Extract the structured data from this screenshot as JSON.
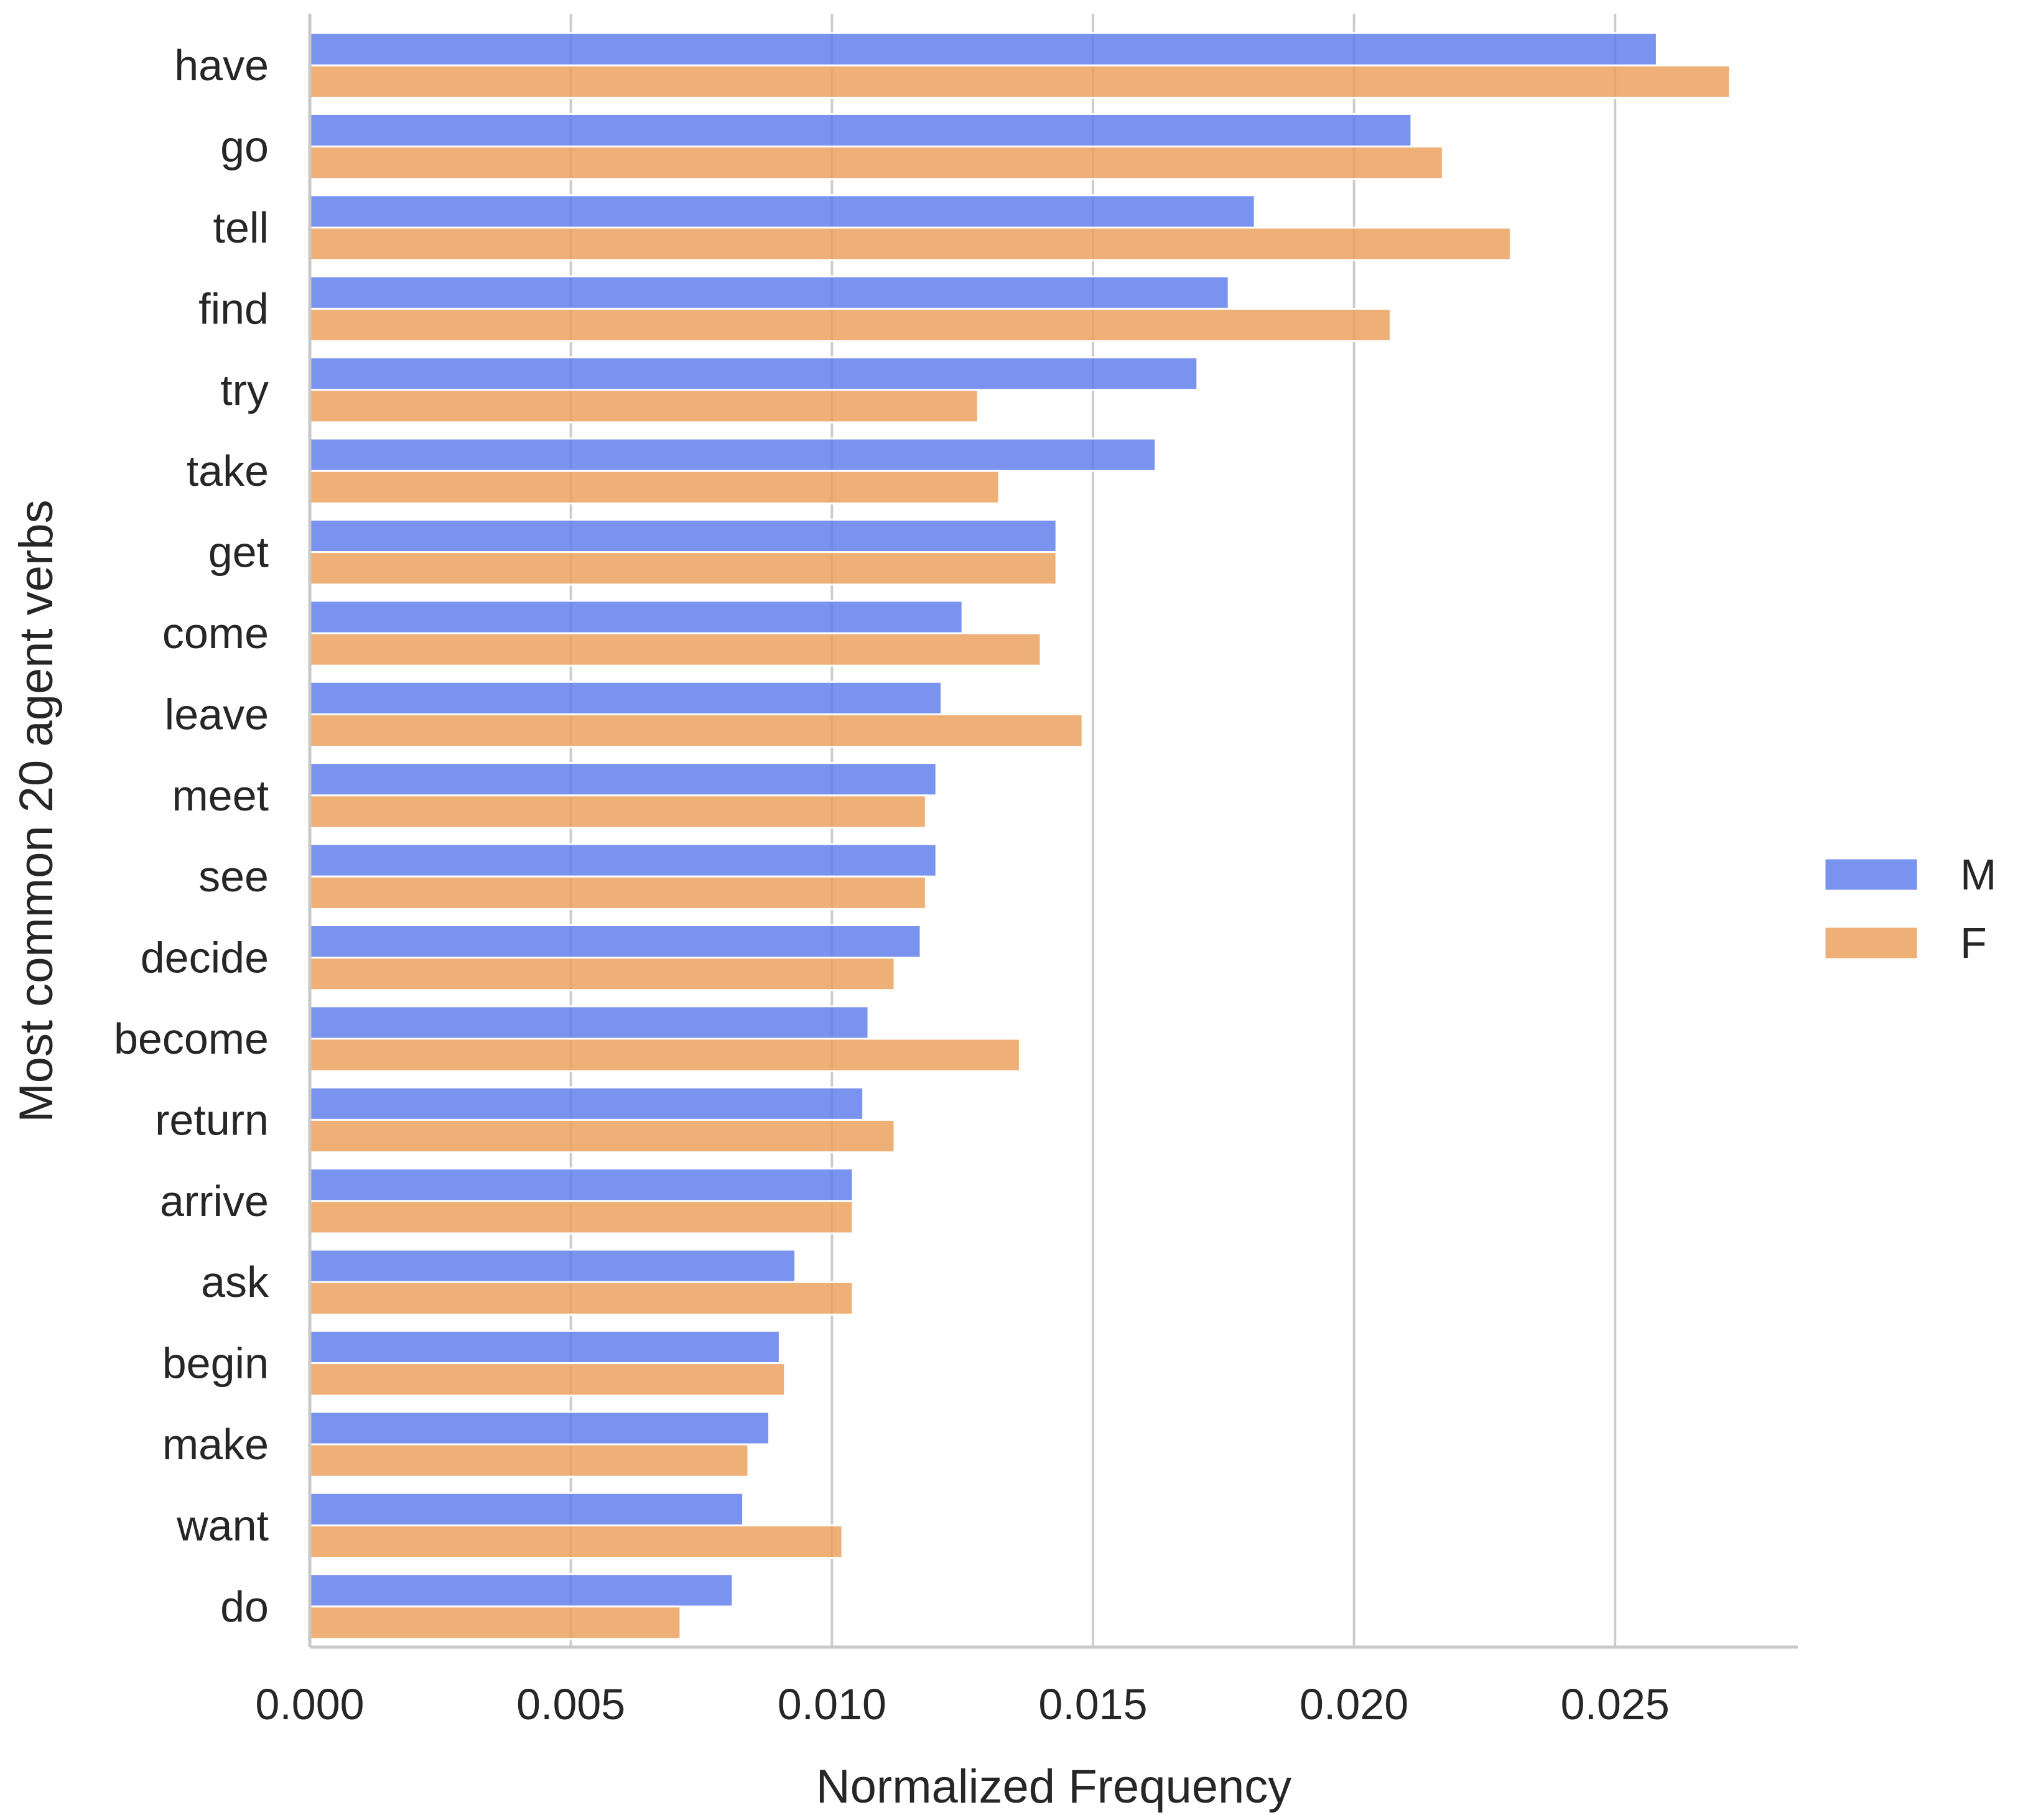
{
  "colors": {
    "M": "#5b7bea",
    "F": "#ec9f5a",
    "grid": "#cccccc",
    "axis": "#c8c8c8",
    "text": "#262626"
  },
  "chart_data": {
    "type": "bar",
    "orientation": "horizontal",
    "xlabel": "Normalized Frequency",
    "ylabel": "Most common 20 agent verbs",
    "xlim": [
      0,
      0.0285
    ],
    "xticks": [
      "0.000",
      "0.005",
      "0.010",
      "0.015",
      "0.020",
      "0.025"
    ],
    "xtick_values": [
      0.0,
      0.005,
      0.01,
      0.015,
      0.02,
      0.025
    ],
    "grid": "vertical",
    "legend_position": "right",
    "categories": [
      "have",
      "go",
      "tell",
      "find",
      "try",
      "take",
      "get",
      "come",
      "leave",
      "meet",
      "see",
      "decide",
      "become",
      "return",
      "arrive",
      "ask",
      "begin",
      "make",
      "want",
      "do"
    ],
    "series": [
      {
        "name": "M",
        "color_key": "M",
        "values": [
          0.0258,
          0.0211,
          0.0181,
          0.0176,
          0.017,
          0.0162,
          0.0143,
          0.0125,
          0.0121,
          0.012,
          0.012,
          0.0117,
          0.0107,
          0.0106,
          0.0104,
          0.0093,
          0.009,
          0.0088,
          0.0083,
          0.0081
        ]
      },
      {
        "name": "F",
        "color_key": "F",
        "values": [
          0.0272,
          0.0217,
          0.023,
          0.0207,
          0.0128,
          0.0132,
          0.0143,
          0.014,
          0.0148,
          0.0118,
          0.0118,
          0.0112,
          0.0136,
          0.0112,
          0.0104,
          0.0104,
          0.0091,
          0.0084,
          0.0102,
          0.0071
        ]
      }
    ]
  }
}
